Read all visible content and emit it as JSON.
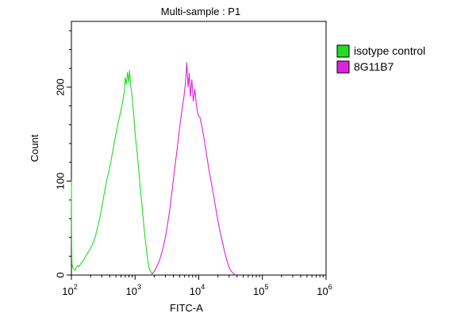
{
  "chart_data": {
    "type": "line",
    "title": "Multi-sample : P1",
    "xlabel": "FITC-A",
    "ylabel": "Count",
    "xscale": "log",
    "xlim": [
      100,
      1000000
    ],
    "ylim": [
      0,
      270
    ],
    "x_ticks": [
      {
        "base": "10",
        "exp": "2",
        "value": 100
      },
      {
        "base": "10",
        "exp": "3",
        "value": 1000
      },
      {
        "base": "10",
        "exp": "4",
        "value": 10000
      },
      {
        "base": "10",
        "exp": "5",
        "value": 100000
      },
      {
        "base": "10",
        "exp": "6",
        "value": 1000000
      }
    ],
    "y_ticks": [
      {
        "label": "0",
        "value": 0
      },
      {
        "label": "100",
        "value": 100
      },
      {
        "label": "200",
        "value": 200
      }
    ],
    "grid": false,
    "legend_position": "right",
    "series": [
      {
        "name": "isotype control",
        "color": "#22dd22",
        "x": [
          100,
          101,
          102,
          105,
          110,
          115,
          120,
          126,
          132,
          140,
          150,
          162,
          175,
          190,
          205,
          222,
          240,
          260,
          282,
          305,
          330,
          358,
          388,
          420,
          455,
          493,
          534,
          578,
          626,
          678,
          700,
          734,
          760,
          795,
          820,
          860,
          900,
          940,
          980,
          1020,
          1080,
          1140,
          1200,
          1270,
          1340,
          1420,
          1500,
          1580,
          1660,
          1740,
          1820,
          1900
        ],
        "y": [
          100,
          45,
          12,
          8,
          6,
          5,
          8,
          10,
          9,
          12,
          14,
          18,
          22,
          26,
          30,
          35,
          42,
          52,
          62,
          75,
          88,
          100,
          110,
          122,
          135,
          148,
          160,
          170,
          182,
          194,
          210,
          203,
          216,
          205,
          218,
          200,
          190,
          175,
          160,
          145,
          130,
          112,
          95,
          78,
          60,
          42,
          28,
          16,
          8,
          4,
          2,
          0
        ]
      },
      {
        "name": "8G11B7",
        "color": "#dd22dd",
        "x": [
          1800,
          1900,
          2000,
          2150,
          2300,
          2480,
          2660,
          2860,
          3080,
          3300,
          3550,
          3820,
          4100,
          4400,
          4730,
          5080,
          5460,
          5870,
          6200,
          6500,
          6800,
          7100,
          7400,
          7800,
          8200,
          8700,
          9200,
          9800,
          10400,
          11100,
          11800,
          12600,
          13500,
          14500,
          15600,
          16800,
          18100,
          19500,
          21000,
          22700,
          24500,
          26500,
          28700,
          31000,
          33500,
          36000,
          38000
        ],
        "y": [
          0,
          2,
          4,
          8,
          12,
          18,
          25,
          34,
          45,
          58,
          72,
          90,
          108,
          125,
          142,
          160,
          176,
          190,
          205,
          226,
          200,
          215,
          190,
          208,
          185,
          198,
          180,
          170,
          168,
          160,
          150,
          138,
          125,
          112,
          100,
          88,
          75,
          62,
          50,
          40,
          30,
          20,
          12,
          6,
          3,
          1,
          0
        ]
      }
    ]
  }
}
